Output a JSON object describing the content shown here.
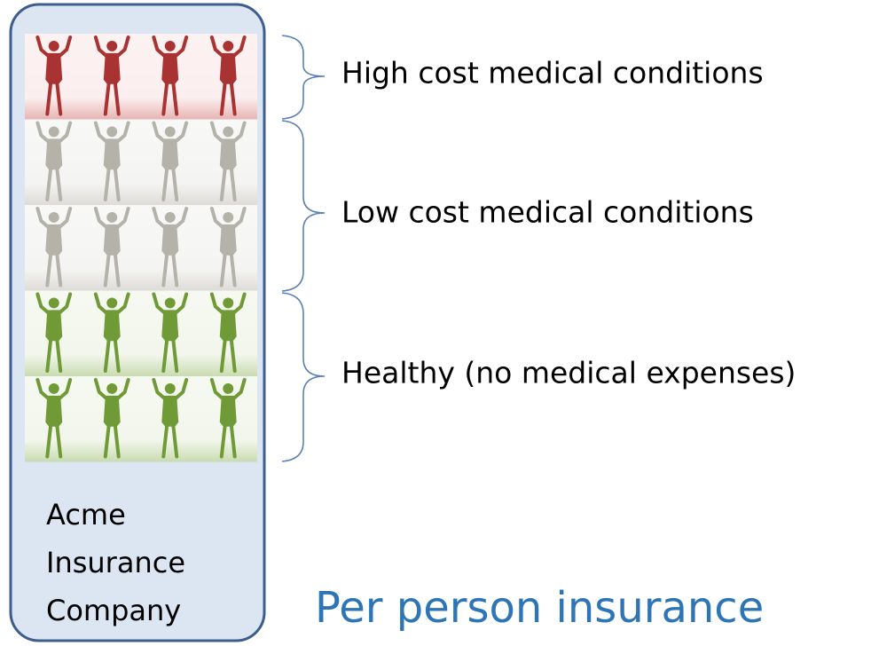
{
  "groups": [
    {
      "label": "High cost medical conditions"
    },
    {
      "label": "Low cost medical conditions"
    },
    {
      "label": "Healthy (no medical expenses)"
    }
  ],
  "company": {
    "lines": [
      "Acme",
      "Insurance",
      "Company"
    ]
  },
  "caption": "Per person insurance"
}
